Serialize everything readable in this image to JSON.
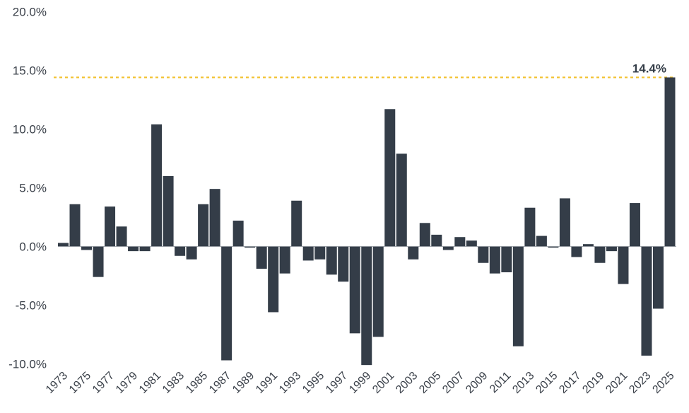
{
  "chart_data": {
    "type": "bar",
    "title": "",
    "xlabel": "",
    "ylabel": "",
    "ylim": [
      -10,
      20
    ],
    "yticks": [
      -10,
      -5,
      0,
      5,
      10,
      15,
      20
    ],
    "ytick_labels": [
      "-10.0%",
      "-5.0%",
      "0.0%",
      "5.0%",
      "10.0%",
      "15.0%",
      "20.0%"
    ],
    "categories": [
      "1973",
      "1974",
      "1975",
      "1976",
      "1977",
      "1978",
      "1979",
      "1980",
      "1981",
      "1982",
      "1983",
      "1984",
      "1985",
      "1986",
      "1987",
      "1988",
      "1989",
      "1990",
      "1991",
      "1992",
      "1993",
      "1994",
      "1995",
      "1996",
      "1997",
      "1998",
      "1999",
      "2000",
      "2001",
      "2002",
      "2003",
      "2004",
      "2005",
      "2006",
      "2007",
      "2008",
      "2009",
      "2010",
      "2011",
      "2012",
      "2013",
      "2014",
      "2015",
      "2016",
      "2017",
      "2018",
      "2019",
      "2020",
      "2021",
      "2022",
      "2023",
      "2024",
      "2025"
    ],
    "xtick_labels": [
      "1973",
      "1975",
      "1977",
      "1979",
      "1981",
      "1983",
      "1985",
      "1987",
      "1989",
      "1991",
      "1993",
      "1995",
      "1997",
      "1999",
      "2001",
      "2003",
      "2005",
      "2007",
      "2009",
      "2011",
      "2013",
      "2015",
      "2017",
      "2019",
      "2021",
      "2023",
      "2025"
    ],
    "values": [
      0.3,
      3.6,
      -0.3,
      -2.6,
      3.4,
      1.7,
      -0.4,
      -0.4,
      10.4,
      6.0,
      -0.8,
      -1.1,
      3.6,
      4.9,
      -9.7,
      2.2,
      -0.1,
      -1.9,
      -5.6,
      -2.3,
      3.9,
      -1.2,
      -1.1,
      -2.4,
      -3.0,
      -7.4,
      -10.1,
      -7.7,
      11.7,
      7.9,
      -1.1,
      2.0,
      1.0,
      -0.3,
      0.8,
      0.5,
      -1.4,
      -2.3,
      -2.2,
      -8.5,
      3.3,
      0.9,
      -0.1,
      4.1,
      -0.9,
      0.2,
      -1.4,
      -0.4,
      -3.2,
      3.7,
      -9.3,
      -5.3,
      14.4
    ],
    "bar_color": "#343d48",
    "grid": false,
    "legend": "none",
    "reference_line": {
      "value": 14.4,
      "label": "14.4%",
      "color": "#f2c12e",
      "style": "dashed"
    }
  }
}
